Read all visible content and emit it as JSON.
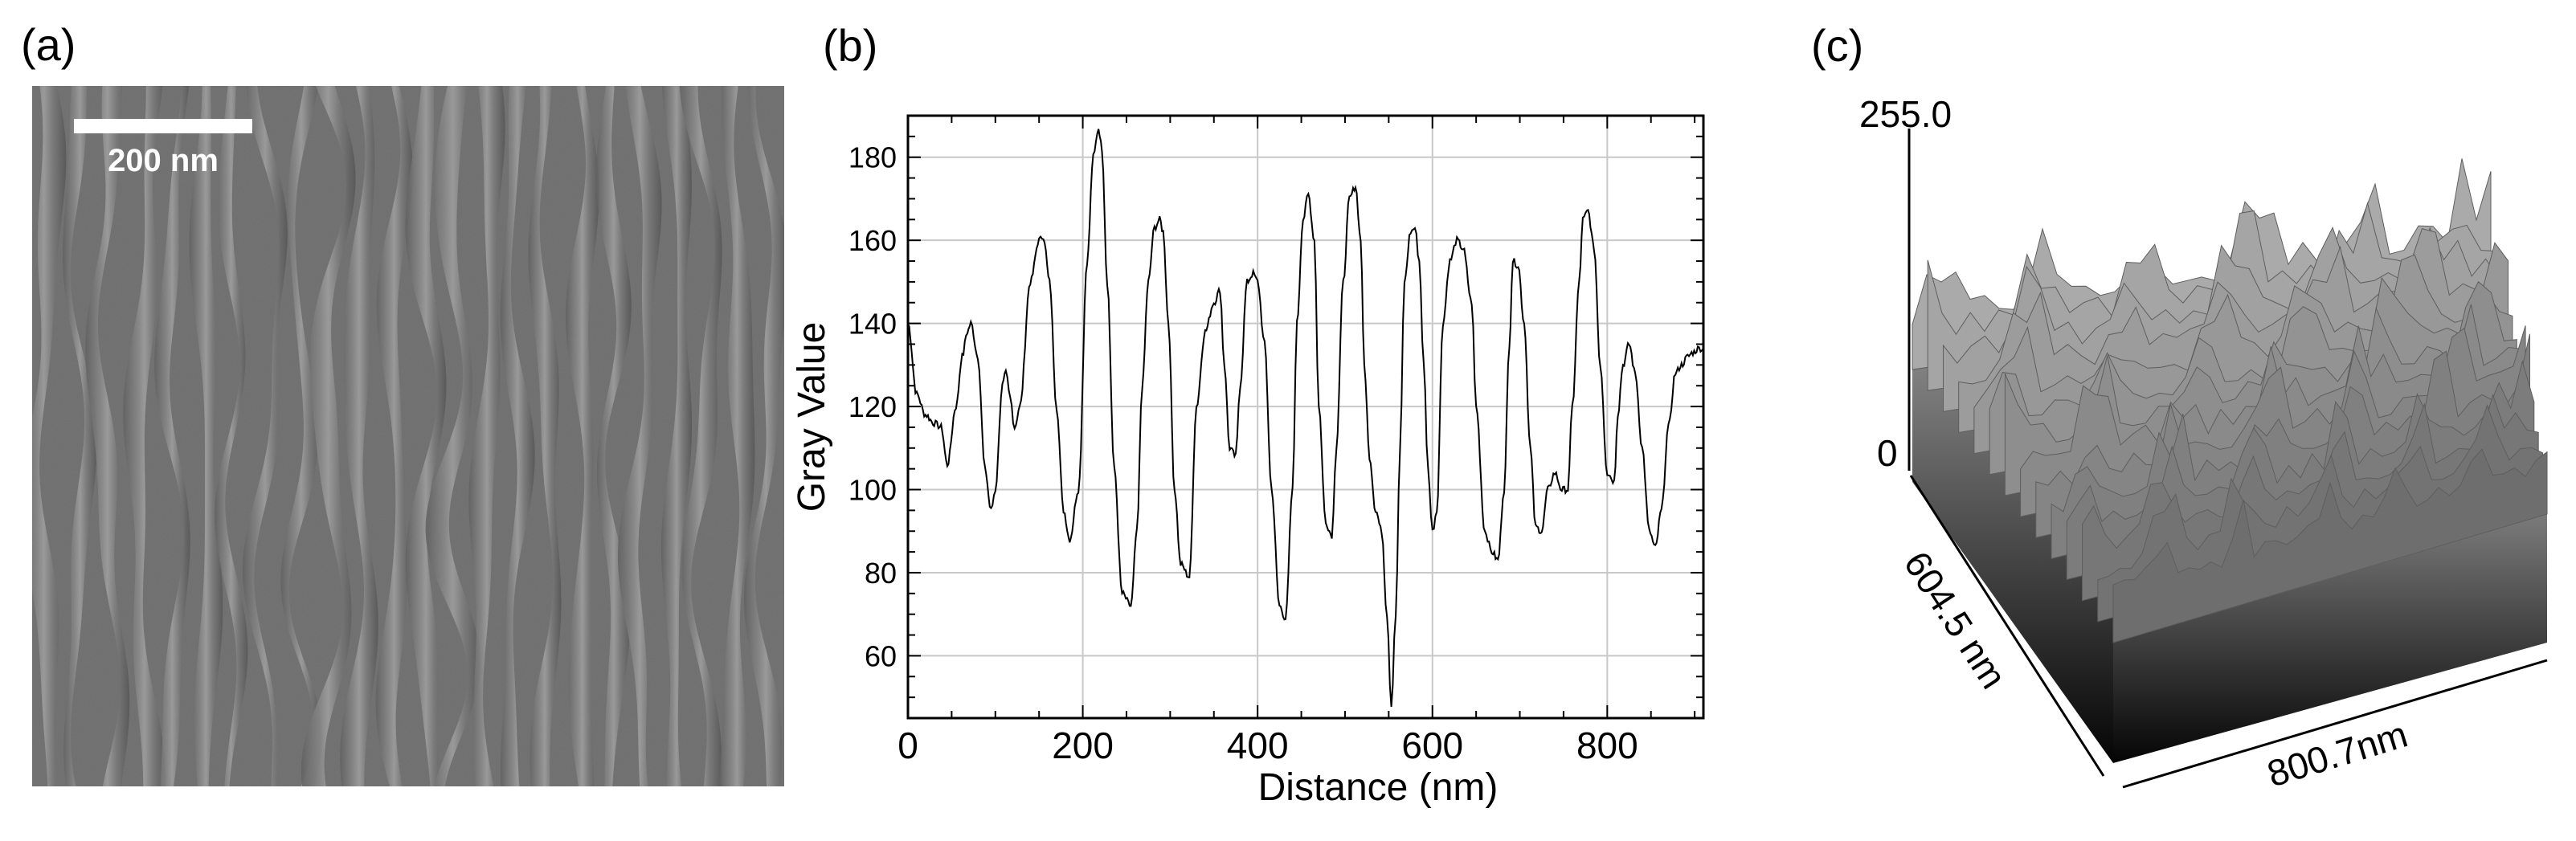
{
  "panels": {
    "a": {
      "label": "(a)",
      "scale_bar": "200 nm"
    },
    "b": {
      "label": "(b)"
    },
    "c": {
      "label": "(c)",
      "z_top_label": "255.0",
      "z_bottom_label": "0",
      "y_extent_label": "604.5 nm",
      "x_extent_label": "800.7nm"
    }
  },
  "chart_data": {
    "type": "line",
    "xlabel": "Distance (nm)",
    "ylabel": "Gray Value",
    "xlim": [
      0,
      910
    ],
    "ylim": [
      45,
      190
    ],
    "xticks": [
      0,
      200,
      400,
      600,
      800
    ],
    "yticks": [
      60,
      80,
      100,
      120,
      140,
      160,
      180
    ],
    "grid": true,
    "series": [
      {
        "x": [
          0,
          10,
          20,
          30,
          38,
          45,
          55,
          62,
          68,
          72,
          80,
          88,
          95,
          100,
          108,
          112,
          117,
          122,
          128,
          140,
          150,
          155,
          162,
          170,
          178,
          185,
          195,
          205,
          212,
          218,
          222,
          228,
          236,
          245,
          255,
          262,
          268,
          275,
          282,
          288,
          292,
          298,
          305,
          312,
          322,
          330,
          340,
          350,
          357,
          362,
          368,
          375,
          380,
          388,
          395,
          400,
          408,
          416,
          425,
          432,
          440,
          445,
          452,
          458,
          465,
          470,
          478,
          485,
          490,
          498,
          505,
          512,
          518,
          522,
          528,
          535,
          542,
          548,
          553,
          558,
          563,
          568,
          575,
          580,
          585,
          590,
          595,
          600,
          605,
          612,
          620,
          628,
          635,
          645,
          650,
          660,
          668,
          675,
          682,
          688,
          692,
          698,
          705,
          712,
          718,
          725,
          732,
          740,
          748,
          755,
          760,
          768,
          772,
          778,
          785,
          792,
          800,
          808,
          812,
          818,
          825,
          832,
          840,
          848,
          855,
          862,
          870,
          878,
          885,
          892,
          898,
          905,
          910
        ],
        "values": [
          140,
          123,
          118,
          116,
          115,
          106,
          120,
          132,
          138,
          140,
          132,
          105,
          95,
          100,
          125,
          128,
          122,
          115,
          120,
          150,
          160,
          161,
          150,
          120,
          95,
          88,
          100,
          155,
          180,
          187,
          182,
          150,
          105,
          75,
          72,
          90,
          125,
          150,
          163,
          165,
          162,
          140,
          100,
          82,
          79,
          120,
          138,
          145,
          148,
          130,
          110,
          108,
          125,
          150,
          152,
          150,
          135,
          100,
          72,
          69,
          100,
          140,
          165,
          171,
          160,
          120,
          92,
          89,
          110,
          150,
          170,
          173,
          160,
          130,
          108,
          95,
          90,
          70,
          48,
          70,
          110,
          150,
          162,
          163,
          155,
          130,
          105,
          90,
          95,
          140,
          155,
          160,
          158,
          145,
          120,
          90,
          85,
          83,
          100,
          135,
          155,
          154,
          140,
          110,
          91,
          90,
          100,
          104,
          100,
          100,
          120,
          150,
          165,
          167,
          158,
          130,
          104,
          102,
          118,
          130,
          135,
          128,
          110,
          90,
          86,
          95,
          115,
          128,
          130,
          132,
          133,
          134,
          134
        ]
      }
    ]
  }
}
